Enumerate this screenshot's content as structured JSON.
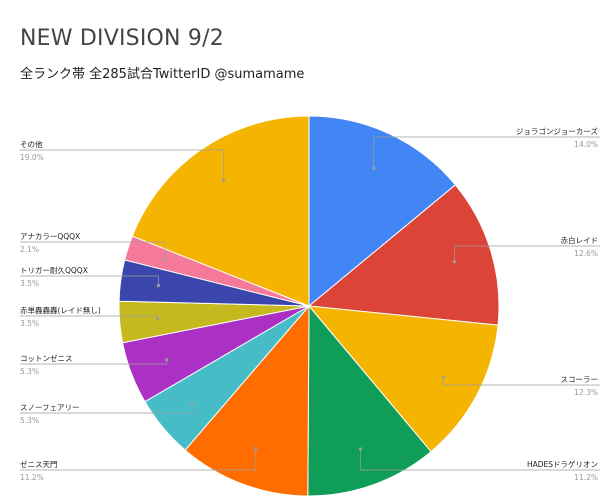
{
  "chart_data": {
    "type": "pie",
    "title": "NEW DIVISION 9/2",
    "subtitle": "全ランク帯 全285試合TwitterID @sumamame",
    "slices": [
      {
        "name": "ジョラゴンジョーカーズ",
        "value": 14.0,
        "label": "14.0%",
        "color": "#4285f4"
      },
      {
        "name": "赤白レイド",
        "value": 12.6,
        "label": "12.6%",
        "color": "#db4437"
      },
      {
        "name": "スコーラー",
        "value": 12.3,
        "label": "12.3%",
        "color": "#f4b400"
      },
      {
        "name": "HADESドラゲリオン",
        "value": 11.2,
        "label": "11.2%",
        "color": "#0f9d58"
      },
      {
        "name": "ゼニス天門",
        "value": 11.2,
        "label": "11.2%",
        "color": "#ff6d00"
      },
      {
        "name": "スノーフェアリー",
        "value": 5.3,
        "label": "5.3%",
        "color": "#46bdc6"
      },
      {
        "name": "コットンゼニス",
        "value": 5.3,
        "label": "5.3%",
        "color": "#ab30c4"
      },
      {
        "name": "赤単轟轟轟(レイド無し)",
        "value": 3.5,
        "label": "3.5%",
        "color": "#c5b91f"
      },
      {
        "name": "トリガー耐久QQQX",
        "value": 3.5,
        "label": "3.5%",
        "color": "#3b46ac"
      },
      {
        "name": "アナカラーQQQX",
        "value": 2.1,
        "label": "2.1%",
        "color": "#f7799a"
      },
      {
        "name": "その他",
        "value": 19.0,
        "label": "19.0%",
        "color": "#f4b400"
      }
    ]
  }
}
